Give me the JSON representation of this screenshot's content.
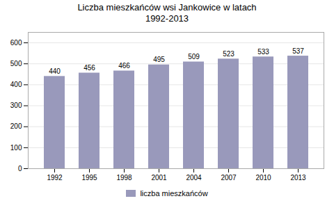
{
  "chart_data": {
    "type": "bar",
    "title": "Liczba mieszkańców wsi Jankowice w latach\n1992-2013",
    "categories": [
      "1992",
      "1995",
      "1998",
      "2001",
      "2004",
      "2007",
      "2010",
      "2013"
    ],
    "series": [
      {
        "name": "liczba mieszkańców",
        "color": "#9999bb",
        "values": [
          440,
          456,
          466,
          495,
          509,
          523,
          533,
          537
        ]
      }
    ],
    "ylim": [
      0,
      650
    ],
    "yticks": [
      0,
      100,
      200,
      300,
      400,
      500,
      600
    ],
    "grid": true,
    "legend": "bottom",
    "data_labels": true
  }
}
